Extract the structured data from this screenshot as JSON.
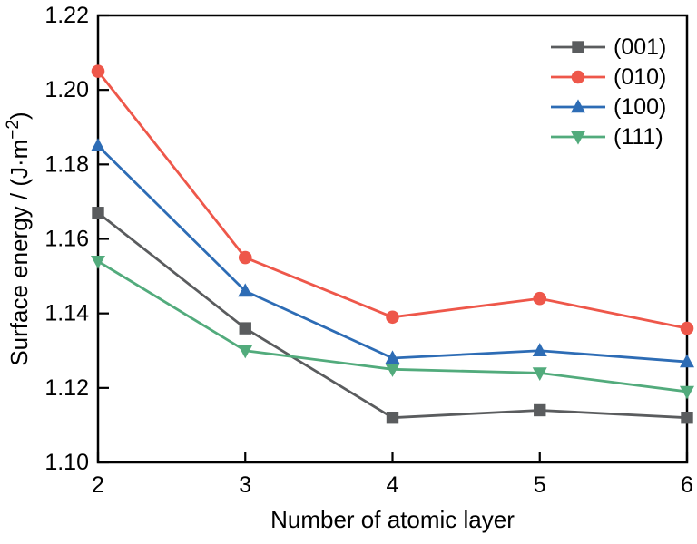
{
  "figure": {
    "background": "#ffffff",
    "axis_color": "#000000",
    "text_color": "#000000"
  },
  "chart_data": {
    "type": "line",
    "title": "",
    "xlabel": "Number of atomic layer",
    "ylabel": {
      "main": "Surface energy / (J·m",
      "superscript": "−2",
      "close": ")"
    },
    "x": [
      2,
      3,
      4,
      5,
      6
    ],
    "series": [
      {
        "name": "(001)",
        "marker": "square",
        "color": "#5a5c5e",
        "values": [
          1.167,
          1.136,
          1.112,
          1.114,
          1.112
        ]
      },
      {
        "name": "(010)",
        "marker": "circle",
        "color": "#ee574a",
        "values": [
          1.205,
          1.155,
          1.139,
          1.144,
          1.136
        ]
      },
      {
        "name": "(100)",
        "marker": "triangle-up",
        "color": "#2d6cb5",
        "values": [
          1.185,
          1.146,
          1.128,
          1.13,
          1.127
        ]
      },
      {
        "name": "(111)",
        "marker": "triangle-down",
        "color": "#52ab7c",
        "values": [
          1.154,
          1.13,
          1.125,
          1.124,
          1.119
        ]
      }
    ],
    "xlim": [
      2,
      6
    ],
    "ylim": [
      1.1,
      1.22
    ],
    "xticks": [
      2,
      3,
      4,
      5,
      6
    ],
    "yticks": [
      1.1,
      1.12,
      1.14,
      1.16,
      1.18,
      1.2,
      1.22
    ],
    "ytick_decimals": 2,
    "grid": false,
    "legend": {
      "position": "top-right",
      "entries": [
        "(001)",
        "(010)",
        "(100)",
        "(111)"
      ]
    }
  }
}
